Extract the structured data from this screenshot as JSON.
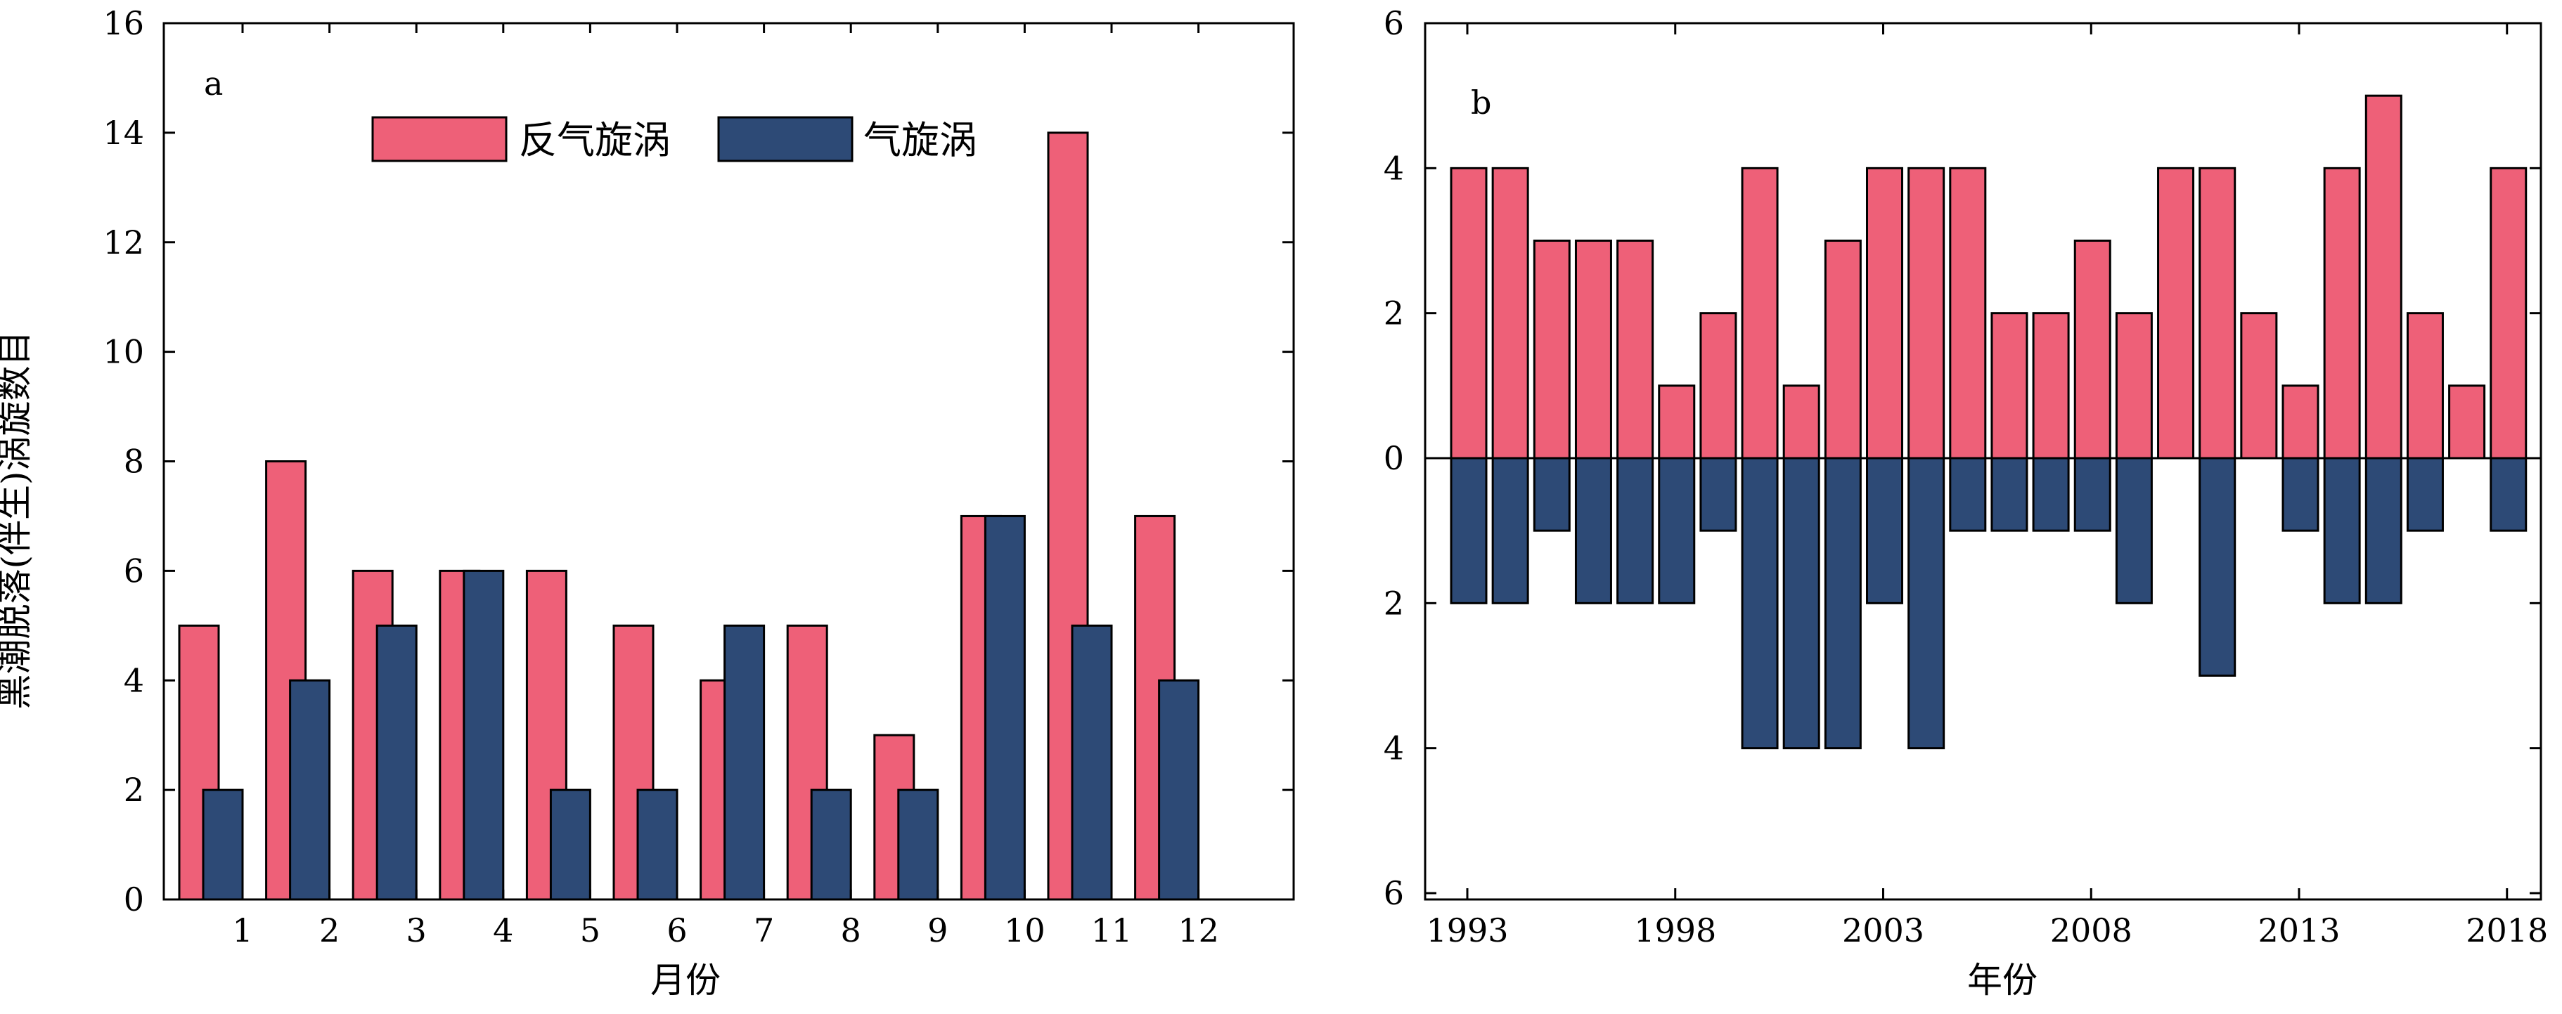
{
  "y_axis_label": "黑潮脱落(伴生)涡旋数目",
  "legend": {
    "anticyclone": "反气旋涡",
    "cyclone": "气旋涡"
  },
  "colors": {
    "anticyclone": "#EE6078",
    "cyclone": "#2D4A76",
    "stroke": "#000000"
  },
  "chart_data": [
    {
      "panel": "a",
      "type": "bar",
      "xlabel": "月份",
      "categories": [
        "1",
        "2",
        "3",
        "4",
        "5",
        "6",
        "7",
        "8",
        "9",
        "10",
        "11",
        "12"
      ],
      "series": [
        {
          "name": "反气旋涡",
          "values": [
            5,
            8,
            6,
            6,
            6,
            5,
            4,
            5,
            3,
            7,
            14,
            7
          ]
        },
        {
          "name": "气旋涡",
          "values": [
            2,
            4,
            5,
            6,
            2,
            2,
            5,
            2,
            2,
            7,
            5,
            4
          ]
        }
      ],
      "ylim": [
        0,
        16
      ],
      "yticks": [
        0,
        2,
        4,
        6,
        8,
        10,
        12,
        14,
        16
      ],
      "legend_position": "top-center"
    },
    {
      "panel": "b",
      "type": "bar",
      "xlabel": "年份",
      "x": [
        1993,
        1994,
        1995,
        1996,
        1997,
        1998,
        1999,
        2000,
        2001,
        2002,
        2003,
        2004,
        2005,
        2006,
        2007,
        2008,
        2009,
        2010,
        2011,
        2012,
        2013,
        2014,
        2015,
        2016,
        2017,
        2018
      ],
      "series": [
        {
          "name": "反气旋涡",
          "direction": "up",
          "values": [
            4,
            4,
            3,
            3,
            3,
            1,
            2,
            4,
            1,
            3,
            4,
            4,
            4,
            2,
            2,
            3,
            2,
            4,
            4,
            2,
            1,
            4,
            5,
            2,
            1,
            4
          ]
        },
        {
          "name": "气旋涡",
          "direction": "down",
          "values": [
            2,
            2,
            1,
            2,
            2,
            2,
            1,
            4,
            4,
            4,
            2,
            4,
            1,
            1,
            1,
            1,
            2,
            0,
            3,
            0,
            1,
            2,
            2,
            1,
            0,
            1
          ]
        }
      ],
      "ylim": [
        -6,
        6
      ],
      "yticks": [
        6,
        4,
        2,
        0,
        2,
        4,
        6
      ],
      "xticks": [
        1993,
        1998,
        2003,
        2008,
        2013,
        2018
      ]
    }
  ]
}
